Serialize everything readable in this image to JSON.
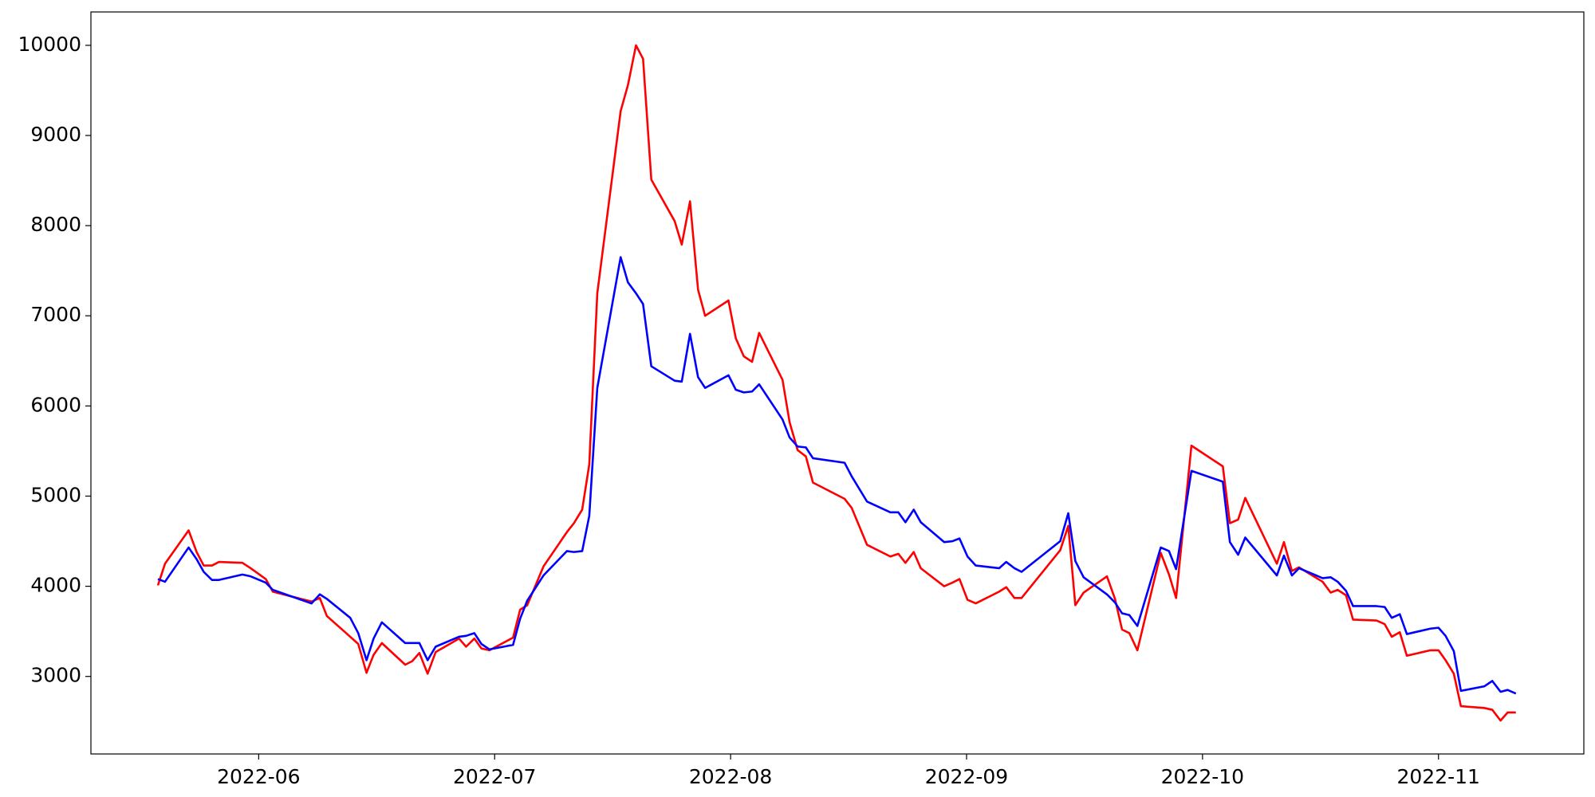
{
  "chart_data": {
    "type": "line",
    "x": [
      5.573,
      5.603,
      5.703,
      5.737,
      5.767,
      5.802,
      5.832,
      5.931,
      5.966,
      6.03,
      6.06,
      6.224,
      6.259,
      6.289,
      6.388,
      6.422,
      6.457,
      6.487,
      6.522,
      6.621,
      6.651,
      6.681,
      6.716,
      6.75,
      6.849,
      6.879,
      6.914,
      6.944,
      6.978,
      7.078,
      7.108,
      7.138,
      7.207,
      7.306,
      7.336,
      7.371,
      7.401,
      7.435,
      7.534,
      7.565,
      7.599,
      7.629,
      7.664,
      7.763,
      7.793,
      7.828,
      7.862,
      7.892,
      7.991,
      8.022,
      8.056,
      8.091,
      8.121,
      8.22,
      8.25,
      8.284,
      8.319,
      8.349,
      8.483,
      8.513,
      8.578,
      8.677,
      8.711,
      8.741,
      8.776,
      8.806,
      8.905,
      8.94,
      8.97,
      9.004,
      9.039,
      9.138,
      9.168,
      9.203,
      9.233,
      9.397,
      9.431,
      9.461,
      9.496,
      9.595,
      9.629,
      9.659,
      9.69,
      9.724,
      9.823,
      9.858,
      9.888,
      9.953,
      10.086,
      10.116,
      10.151,
      10.181,
      10.315,
      10.345,
      10.379,
      10.409,
      10.509,
      10.543,
      10.573,
      10.608,
      10.638,
      10.737,
      10.772,
      10.802,
      10.836,
      10.866,
      10.966,
      11.0,
      11.03,
      11.065,
      11.095,
      11.194,
      11.228,
      11.263,
      11.293,
      11.328
    ],
    "series": [
      {
        "color": "#ff0000",
        "values": [
          4010,
          4250,
          4620,
          4380,
          4230,
          4230,
          4270,
          4260,
          4200,
          4080,
          3940,
          3830,
          3870,
          3670,
          3440,
          3360,
          3040,
          3240,
          3370,
          3130,
          3170,
          3260,
          3030,
          3270,
          3420,
          3330,
          3420,
          3310,
          3290,
          3430,
          3740,
          3790,
          4220,
          4600,
          4700,
          4850,
          5350,
          7250,
          9270,
          9560,
          10000,
          9850,
          8510,
          8050,
          7790,
          8270,
          7290,
          7000,
          7170,
          6750,
          6550,
          6490,
          6810,
          6290,
          5820,
          5510,
          5440,
          5150,
          4970,
          4870,
          4460,
          4330,
          4360,
          4260,
          4380,
          4200,
          4000,
          4040,
          4080,
          3850,
          3810,
          3940,
          3990,
          3870,
          3870,
          4400,
          4670,
          3790,
          3930,
          4110,
          3860,
          3520,
          3480,
          3290,
          4370,
          4130,
          3870,
          5560,
          5330,
          4700,
          4740,
          4980,
          4250,
          4490,
          4170,
          4210,
          4050,
          3930,
          3960,
          3900,
          3630,
          3620,
          3580,
          3440,
          3490,
          3230,
          3290,
          3290,
          3180,
          3030,
          2670,
          2650,
          2630,
          2510,
          2600,
          2600
        ]
      },
      {
        "color": "#0000ff",
        "values": [
          4080,
          4050,
          4430,
          4300,
          4160,
          4070,
          4070,
          4130,
          4110,
          4040,
          3960,
          3810,
          3910,
          3860,
          3650,
          3480,
          3180,
          3420,
          3600,
          3370,
          3370,
          3370,
          3180,
          3330,
          3440,
          3450,
          3480,
          3360,
          3300,
          3350,
          3640,
          3840,
          4120,
          4390,
          4380,
          4390,
          4780,
          6200,
          7650,
          7370,
          7250,
          7130,
          6440,
          6280,
          6270,
          6800,
          6320,
          6200,
          6340,
          6180,
          6150,
          6160,
          6240,
          5850,
          5650,
          5550,
          5540,
          5420,
          5370,
          5220,
          4940,
          4820,
          4820,
          4710,
          4850,
          4710,
          4490,
          4500,
          4530,
          4330,
          4230,
          4200,
          4270,
          4200,
          4160,
          4500,
          4810,
          4280,
          4100,
          3910,
          3820,
          3700,
          3680,
          3560,
          4430,
          4390,
          4190,
          5280,
          5160,
          4490,
          4350,
          4540,
          4120,
          4340,
          4120,
          4200,
          4090,
          4100,
          4050,
          3950,
          3780,
          3780,
          3770,
          3650,
          3690,
          3470,
          3530,
          3540,
          3450,
          3280,
          2840,
          2890,
          2950,
          2830,
          2850,
          2810
        ]
      }
    ],
    "xlim": [
      5.289,
      11.616
    ],
    "xticks": [
      {
        "value": 6,
        "label": "2022-06"
      },
      {
        "value": 7,
        "label": "2022-07"
      },
      {
        "value": 8,
        "label": "2022-08"
      },
      {
        "value": 9,
        "label": "2022-09"
      },
      {
        "value": 10,
        "label": "2022-10"
      },
      {
        "value": 11,
        "label": "2022-11"
      }
    ],
    "ylim": [
      2140,
      10370
    ],
    "yticks": [
      3000,
      4000,
      5000,
      6000,
      7000,
      8000,
      9000,
      10000
    ],
    "grid": false
  }
}
